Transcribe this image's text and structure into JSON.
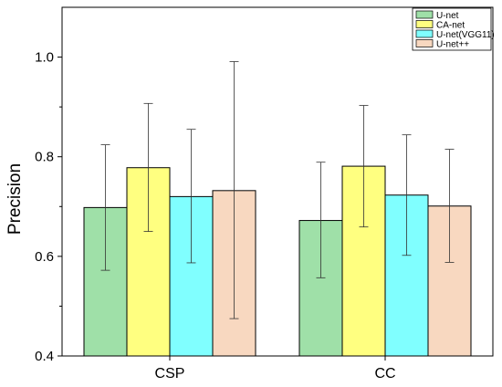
{
  "chart_data": {
    "type": "bar",
    "categories": [
      "CSP",
      "CC"
    ],
    "series": [
      {
        "name": "U-net",
        "color": "#9fe0a8",
        "values": [
          0.698,
          0.672
        ],
        "error_low": [
          0.572,
          0.557
        ],
        "error_high": [
          0.824,
          0.789
        ]
      },
      {
        "name": "CA-net",
        "color": "#ffff80",
        "values": [
          0.778,
          0.781
        ],
        "error_low": [
          0.65,
          0.659
        ],
        "error_high": [
          0.907,
          0.903
        ]
      },
      {
        "name": "U-net(VGG11)",
        "color": "#80ffff",
        "values": [
          0.72,
          0.723
        ],
        "error_low": [
          0.587,
          0.602
        ],
        "error_high": [
          0.855,
          0.844
        ]
      },
      {
        "name": "U-net++",
        "color": "#f8d8c0",
        "values": [
          0.732,
          0.701
        ],
        "error_low": [
          0.475,
          0.588
        ],
        "error_high": [
          0.991,
          0.815
        ]
      }
    ],
    "xlabel": "",
    "ylabel": "Precision",
    "ylim": [
      0.4,
      1.1
    ],
    "yticks": [
      "0.4",
      "0.6",
      "0.8",
      "1.0"
    ],
    "grid": false,
    "legend_position": "top-right"
  }
}
